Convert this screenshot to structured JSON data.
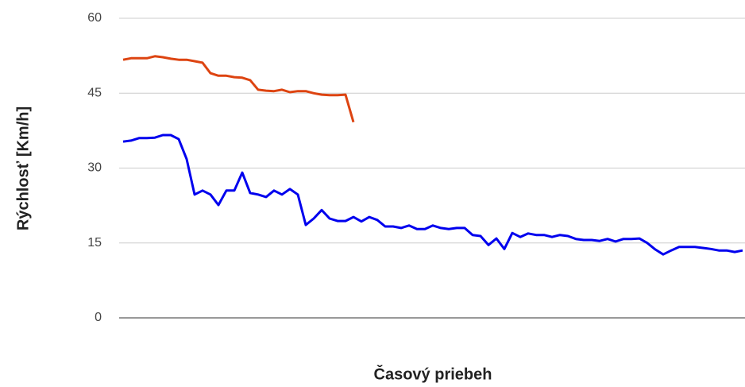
{
  "chart_data": {
    "type": "line",
    "y_label": "Rýchlosť [Km/h]",
    "x_label": "Časový priebeh",
    "ylim": [
      0,
      60
    ],
    "yticks": [
      0,
      15,
      30,
      45,
      60
    ],
    "grid": true,
    "series": [
      {
        "color": "#dd4411",
        "values": [
          51.7,
          52,
          52,
          52,
          52.4,
          52.2,
          51.9,
          51.7,
          51.7,
          51.4,
          51.1,
          49,
          48.5,
          48.5,
          48.2,
          48.1,
          47.6,
          45.7,
          45.5,
          45.4,
          45.7,
          45.2,
          45.4,
          45.4,
          45,
          44.7,
          44.6,
          44.6,
          44.7,
          39.2,
          null,
          null,
          null,
          null,
          null,
          null,
          null,
          null,
          null,
          null,
          null,
          null,
          null,
          null,
          null,
          null,
          null,
          null,
          null,
          null,
          null,
          null,
          null,
          null,
          null,
          null,
          null,
          null,
          null,
          null,
          null,
          null,
          null,
          null,
          null,
          null,
          null,
          null,
          null,
          null,
          null,
          null,
          null,
          null,
          null,
          null,
          null,
          null,
          null
        ]
      },
      {
        "color": "#0000ee",
        "values": [
          35.3,
          35.5,
          36,
          36,
          36.1,
          36.6,
          36.6,
          35.8,
          31.8,
          24.7,
          25.5,
          24.7,
          22.6,
          25.5,
          25.5,
          29.1,
          25,
          24.7,
          24.2,
          25.5,
          24.7,
          25.8,
          24.7,
          18.6,
          19.9,
          21.6,
          19.9,
          19.4,
          19.4,
          20.2,
          19.3,
          20.2,
          19.6,
          18.3,
          18.3,
          18,
          18.5,
          17.8,
          17.8,
          18.5,
          18,
          17.8,
          18,
          18,
          16.6,
          16.4,
          14.6,
          15.9,
          13.8,
          17,
          16.2,
          16.9,
          16.6,
          16.6,
          16.2,
          16.6,
          16.4,
          15.8,
          15.6,
          15.6,
          15.4,
          15.8,
          15.3,
          15.8,
          15.8,
          15.9,
          15,
          13.7,
          12.7,
          13.5,
          14.2,
          14.2,
          14.2,
          14,
          13.8,
          13.5,
          13.5,
          13.2,
          13.5
        ]
      }
    ]
  }
}
